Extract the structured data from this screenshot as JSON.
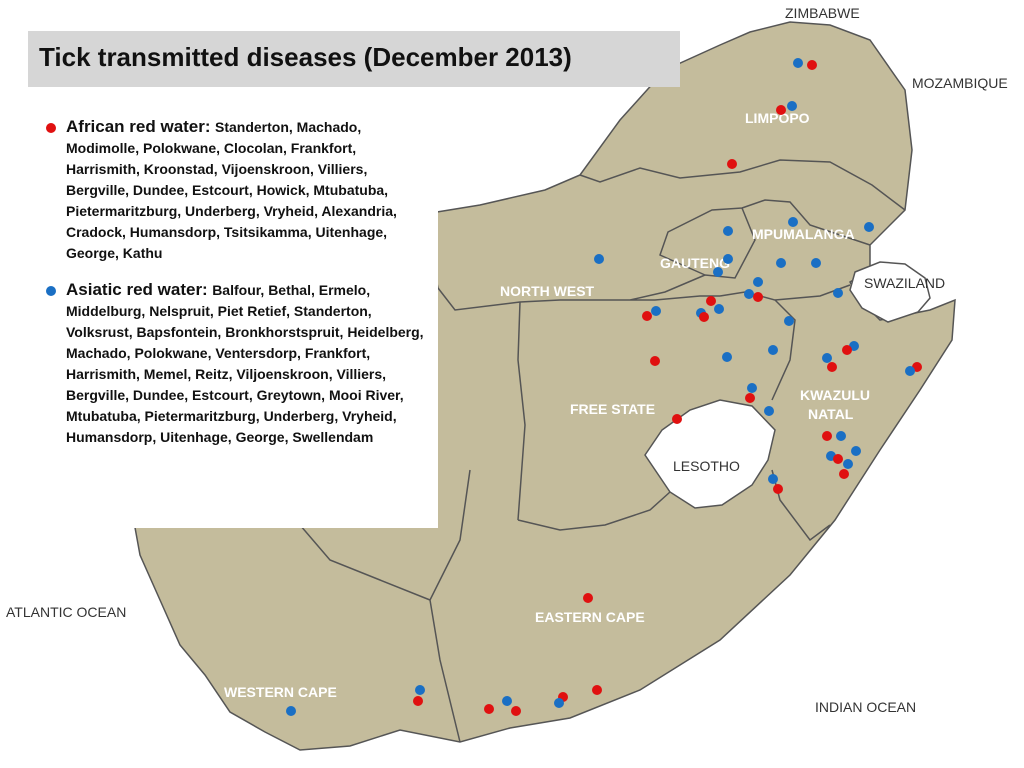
{
  "title": "Tick transmitted diseases (December  2013)",
  "legend": [
    {
      "label": "African red water:",
      "color": "#e01010",
      "towns": "Standerton, Machado, Modimolle, Polokwane, Clocolan, Frankfort, Harrismith, Kroonstad, Vijoenskroon, Villiers, Bergville, Dundee, Estcourt, Howick, Mtubatuba, Pietermaritzburg, Underberg, Vryheid, Alexandria, Cradock, Humansdorp, Tsitsikamma, Uitenhage, George,  Kathu"
    },
    {
      "label": "Asiatic red water:",
      "color": "#1a6fc4",
      "towns": "Balfour, Bethal, Ermelo, Middelburg, Nelspruit, Piet Retief, Standerton, Volksrust, Bapsfontein, Bronkhorstspruit, Heidelberg,  Machado, Polokwane, Ventersdorp,  Frankfort, Harrismith, Memel,  Reitz, Viljoenskroon, Villiers, Bergville, Dundee, Estcourt, Greytown,  Mooi River, Mtubatuba, Pietermaritzburg, Underberg, Vryheid, Humansdorp, Uitenhage, George, Swellendam"
    }
  ],
  "provinces": {
    "limpopo": "LIMPOPO",
    "mpumalanga": "MPUMALANGA",
    "gauteng": "GAUTENG",
    "north_west": "NORTH WEST",
    "free_state": "FREE STATE",
    "kwazulu_natal_1": "KWAZULU",
    "kwazulu_natal_2": "NATAL",
    "eastern_cape": "EASTERN CAPE",
    "western_cape": "WESTERN CAPE"
  },
  "countries": {
    "zimbabwe": "ZIMBABWE",
    "mozambique": "MOZAMBIQUE",
    "swaziland": "SWAZILAND",
    "lesotho": "LESOTHO"
  },
  "oceans": {
    "atlantic": "ATLANTIC OCEAN",
    "indian": "INDIAN OCEAN"
  },
  "colors": {
    "land": "#c4bc9c",
    "border": "#555555",
    "african_red_water": "#e01010",
    "asiatic_red_water": "#1a6fc4"
  }
}
